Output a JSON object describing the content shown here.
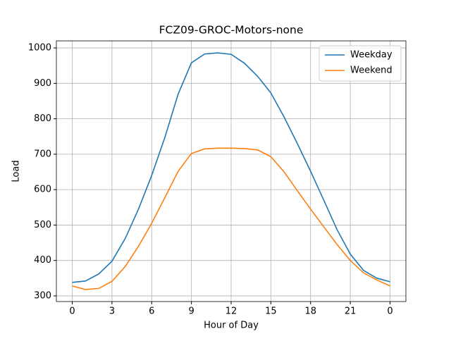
{
  "chart_data": {
    "type": "line",
    "title": "FCZ09-GROC-Motors-none",
    "xlabel": "Hour of Day",
    "ylabel": "Load",
    "x": [
      0,
      1,
      2,
      3,
      4,
      5,
      6,
      7,
      8,
      9,
      10,
      11,
      12,
      13,
      14,
      15,
      16,
      17,
      18,
      19,
      20,
      21,
      22,
      23,
      24
    ],
    "series": [
      {
        "name": "Weekday",
        "color": "#1f77b4",
        "values": [
          338,
          342,
          362,
          398,
          462,
          545,
          640,
          748,
          870,
          958,
          983,
          986,
          982,
          957,
          920,
          873,
          805,
          730,
          652,
          570,
          487,
          418,
          372,
          350,
          340
        ]
      },
      {
        "name": "Weekend",
        "color": "#ff7f0e",
        "values": [
          328,
          318,
          321,
          341,
          383,
          440,
          505,
          578,
          652,
          702,
          715,
          717,
          717,
          716,
          712,
          693,
          650,
          597,
          545,
          495,
          445,
          400,
          365,
          345,
          328
        ]
      }
    ],
    "xlim": [
      -1.2,
      25.2
    ],
    "xticks": [
      0,
      3,
      6,
      9,
      12,
      15,
      18,
      21,
      {
        "value": 24,
        "label": "0"
      }
    ],
    "ylim": [
      284,
      1020
    ],
    "yticks": [
      300,
      400,
      500,
      600,
      700,
      800,
      900,
      1000
    ],
    "grid": true,
    "legend": "upper right"
  }
}
